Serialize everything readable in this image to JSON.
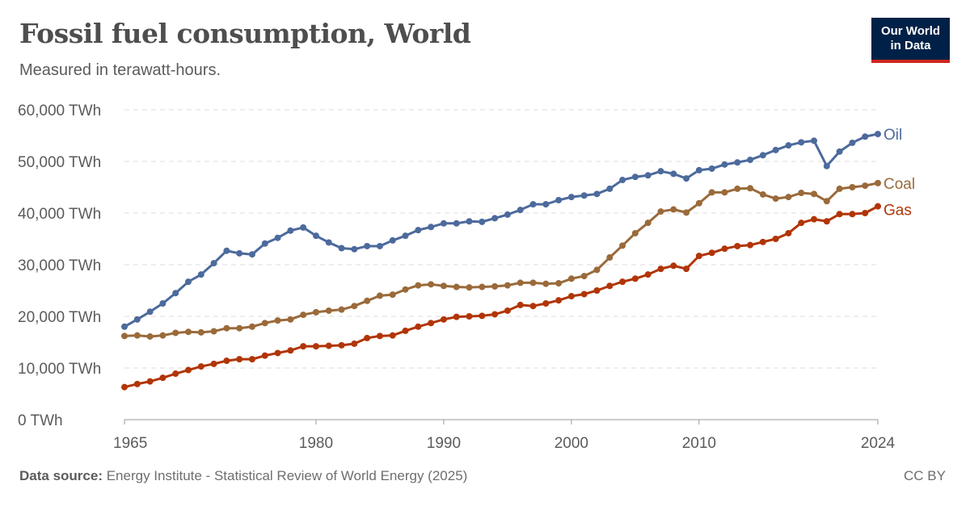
{
  "header": {
    "title": "Fossil fuel consumption, World",
    "subtitle": "Measured in terawatt-hours.",
    "logo_line1": "Our World",
    "logo_line2": "in Data"
  },
  "footer": {
    "source_label": "Data source:",
    "source_text": "Energy Institute - Statistical Review of World Energy (2025)",
    "license": "CC BY"
  },
  "chart_data": {
    "type": "line",
    "title": "Fossil fuel consumption, World",
    "subtitle": "Measured in terawatt-hours.",
    "xlim": [
      1965,
      2024
    ],
    "ylim": [
      0,
      60000
    ],
    "grid": "horizontal dashed",
    "legend": "right, inline labels at line ends",
    "y_ticks": [
      0,
      10000,
      20000,
      30000,
      40000,
      50000,
      60000
    ],
    "y_tick_labels": [
      "0 TWh",
      "10,000 TWh",
      "20,000 TWh",
      "30,000 TWh",
      "40,000 TWh",
      "50,000 TWh",
      "60,000 TWh"
    ],
    "x_ticks": [
      1965,
      1980,
      1990,
      2000,
      2010,
      2024
    ],
    "x_tick_labels": [
      "1965",
      "1980",
      "1990",
      "2000",
      "2010",
      "2024"
    ],
    "x_start": 1965,
    "series": [
      {
        "name": "Oil",
        "color": "#4c6a9c",
        "values": [
          18000,
          19400,
          20900,
          22500,
          24500,
          26700,
          28100,
          30300,
          32700,
          32200,
          32000,
          34100,
          35200,
          36600,
          37200,
          35600,
          34300,
          33200,
          33000,
          33600,
          33600,
          34700,
          35600,
          36700,
          37300,
          38000,
          38000,
          38400,
          38300,
          39000,
          39700,
          40600,
          41700,
          41700,
          42500,
          43100,
          43400,
          43700,
          44700,
          46400,
          47000,
          47300,
          48100,
          47600,
          46700,
          48300,
          48600,
          49400,
          49800,
          50300,
          51200,
          52200,
          53100,
          53700,
          54000,
          49100,
          51900,
          53600,
          54800,
          55300
        ]
      },
      {
        "name": "Coal",
        "color": "#9a6a3a",
        "values": [
          16200,
          16300,
          16100,
          16300,
          16800,
          17000,
          16900,
          17100,
          17700,
          17700,
          18000,
          18700,
          19200,
          19400,
          20300,
          20800,
          21100,
          21300,
          22000,
          23000,
          24000,
          24200,
          25200,
          26000,
          26200,
          25900,
          25700,
          25600,
          25700,
          25800,
          26000,
          26500,
          26500,
          26300,
          26400,
          27300,
          27800,
          29000,
          31400,
          33700,
          36100,
          38100,
          40300,
          40700,
          40100,
          41900,
          44000,
          44000,
          44700,
          44800,
          43600,
          42800,
          43100,
          43900,
          43700,
          42300,
          44700,
          45000,
          45300,
          45800
        ]
      },
      {
        "name": "Gas",
        "color": "#b13507",
        "values": [
          6300,
          6900,
          7400,
          8100,
          8900,
          9600,
          10300,
          10800,
          11400,
          11700,
          11700,
          12400,
          12900,
          13400,
          14200,
          14200,
          14300,
          14400,
          14700,
          15800,
          16200,
          16300,
          17200,
          18000,
          18700,
          19400,
          19900,
          20000,
          20100,
          20400,
          21100,
          22200,
          22000,
          22500,
          23100,
          23900,
          24300,
          25000,
          25900,
          26700,
          27300,
          28100,
          29200,
          29800,
          29200,
          31700,
          32300,
          33100,
          33600,
          33800,
          34400,
          35000,
          36100,
          38100,
          38800,
          38400,
          39800,
          39800,
          40000,
          41300
        ]
      }
    ]
  }
}
